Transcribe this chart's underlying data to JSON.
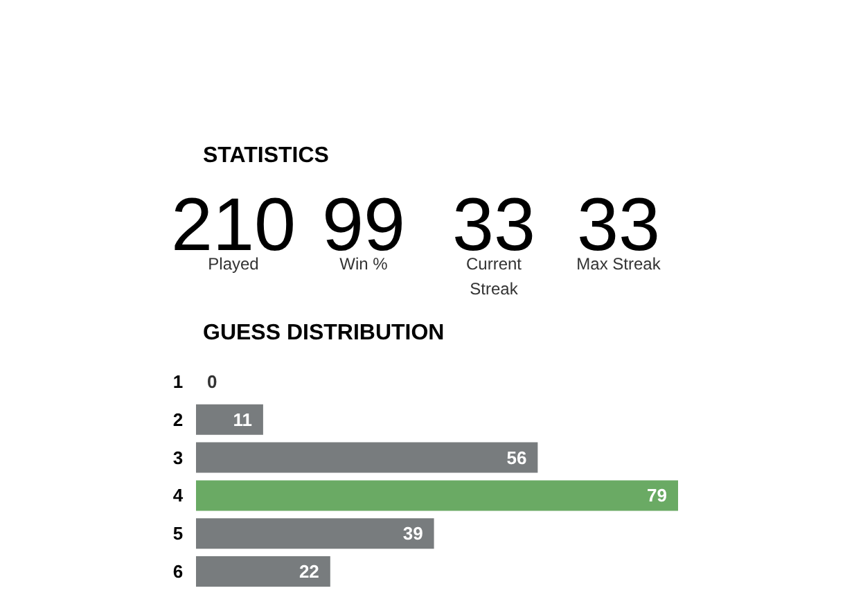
{
  "chart_data": [
    {
      "type": "other",
      "title": "STATISTICS",
      "categories": [
        "Played",
        "Win %",
        "Current Streak",
        "Max Streak"
      ],
      "values": [
        210,
        99,
        33,
        33
      ],
      "data_labels": true
    },
    {
      "type": "bar",
      "title": "GUESS DISTRIBUTION",
      "orientation": "horizontal",
      "categories": [
        "1",
        "2",
        "3",
        "4",
        "5",
        "6"
      ],
      "values": [
        0,
        11,
        56,
        79,
        39,
        22
      ],
      "colors": [
        "#787c7e",
        "#787c7e",
        "#787c7e",
        "#6aaa64",
        "#787c7e",
        "#787c7e"
      ],
      "data_labels": true
    }
  ]
}
